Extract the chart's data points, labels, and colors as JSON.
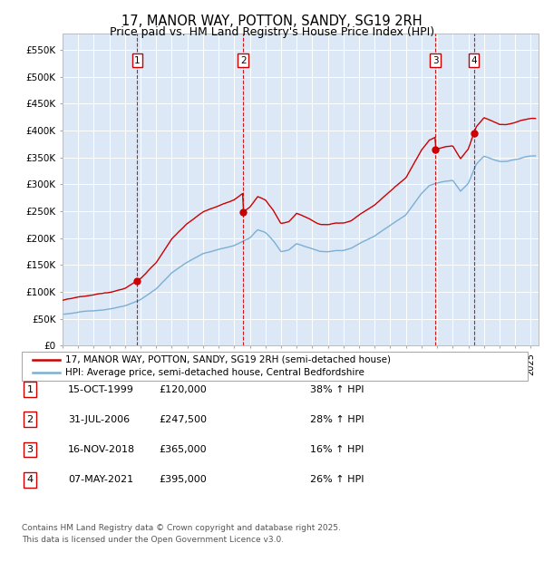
{
  "title": "17, MANOR WAY, POTTON, SANDY, SG19 2RH",
  "subtitle": "Price paid vs. HM Land Registry's House Price Index (HPI)",
  "title_fontsize": 10.5,
  "subtitle_fontsize": 9,
  "background_color": "#ffffff",
  "plot_bg_color": "#dce8f5",
  "grid_color": "#ffffff",
  "sale_color": "#cc0000",
  "hpi_color": "#7bafd4",
  "sale_dates": [
    1999.79,
    2006.58,
    2018.88,
    2021.35
  ],
  "sale_prices": [
    120000,
    247500,
    365000,
    395000
  ],
  "sale_labels": [
    "1",
    "2",
    "3",
    "4"
  ],
  "sale_label_dates_str": [
    "15-OCT-1999",
    "31-JUL-2006",
    "16-NOV-2018",
    "07-MAY-2021"
  ],
  "sale_label_prices_str": [
    "£120,000",
    "£247,500",
    "£365,000",
    "£395,000"
  ],
  "sale_label_hpi_str": [
    "38% ↑ HPI",
    "28% ↑ HPI",
    "16% ↑ HPI",
    "26% ↑ HPI"
  ],
  "xmin": 1995.0,
  "xmax": 2025.5,
  "ymin": 0,
  "ymax": 580000,
  "yticks": [
    0,
    50000,
    100000,
    150000,
    200000,
    250000,
    300000,
    350000,
    400000,
    450000,
    500000,
    550000
  ],
  "ytick_labels": [
    "£0",
    "£50K",
    "£100K",
    "£150K",
    "£200K",
    "£250K",
    "£300K",
    "£350K",
    "£400K",
    "£450K",
    "£500K",
    "£550K"
  ],
  "legend_sale": "17, MANOR WAY, POTTON, SANDY, SG19 2RH (semi-detached house)",
  "legend_hpi": "HPI: Average price, semi-detached house, Central Bedfordshire",
  "footer": "Contains HM Land Registry data © Crown copyright and database right 2025.\nThis data is licensed under the Open Government Licence v3.0.",
  "sale_vline_dates": [
    1999.79,
    2006.58,
    2018.88,
    2021.35
  ]
}
